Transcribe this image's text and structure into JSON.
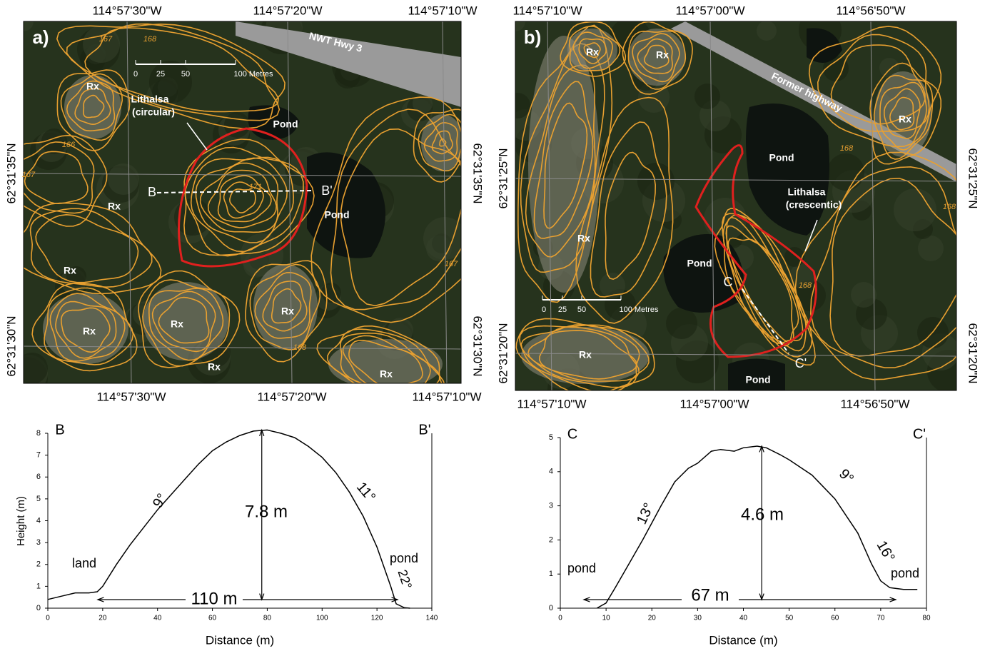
{
  "panel_a": {
    "label": "a)",
    "lon_top": [
      "114°57'30\"W",
      "114°57'20\"W",
      "114°57'10\"W"
    ],
    "lon_bottom": [
      "114°57'30\"W",
      "114°57'20\"W",
      "114°57'10\"W"
    ],
    "lat_left": [
      "62°31'35\"N",
      "62°31'30\"N"
    ],
    "lat_right": [
      "62°31'35\"N",
      "62°31'30\"N"
    ],
    "road": "NWT Hwy 3",
    "scale": [
      "0",
      "25",
      "50",
      "100 Metres"
    ],
    "feature": [
      "Lithalsa",
      "(circular)"
    ],
    "ponds": [
      "Pond",
      "Pond"
    ],
    "rock": [
      "Rx",
      "Rx",
      "Rx",
      "Rx",
      "Rx",
      "Rx",
      "Rx",
      "Rx"
    ],
    "sections": [
      "B",
      "B'"
    ],
    "contours": [
      "167",
      "168",
      "166",
      "167",
      "171",
      "168",
      "167"
    ]
  },
  "panel_b": {
    "label": "b)",
    "lon_top": [
      "114°57'10\"W",
      "114°57'00\"W",
      "114°56'50\"W"
    ],
    "lon_bottom": [
      "114°57'10\"W",
      "114°57'00\"W",
      "114°56'50\"W"
    ],
    "lat_left": [
      "62°31'25\"N",
      "62°31'20\"N"
    ],
    "lat_right": [
      "62°31'25\"N",
      "62°31'20\"N"
    ],
    "road": "Former highway",
    "scale": [
      "0",
      "25",
      "50",
      "100 Metres"
    ],
    "feature": [
      "Lithalsa",
      "(crescentic)"
    ],
    "ponds": [
      "Pond",
      "Pond",
      "Pond"
    ],
    "rock": [
      "Rx",
      "Rx",
      "Rx",
      "Rx",
      "Rx"
    ],
    "sections": [
      "C",
      "C'"
    ],
    "contours": [
      "168",
      "168",
      "168"
    ]
  },
  "chart_data": [
    {
      "type": "line",
      "corner_labels": [
        "B",
        "B'"
      ],
      "x_label": "Distance (m)",
      "y_label": "Height (m)",
      "color": "#000000",
      "x": [
        0,
        5,
        10,
        15,
        18,
        20,
        25,
        30,
        35,
        40,
        45,
        50,
        55,
        60,
        65,
        70,
        75,
        80,
        85,
        90,
        95,
        100,
        105,
        110,
        115,
        120,
        125,
        127,
        130,
        132
      ],
      "values": [
        0.4,
        0.55,
        0.7,
        0.7,
        0.75,
        1.0,
        2.0,
        2.9,
        3.7,
        4.5,
        5.2,
        5.9,
        6.6,
        7.2,
        7.6,
        7.9,
        8.1,
        8.15,
        8.0,
        7.8,
        7.4,
        6.9,
        6.2,
        5.3,
        4.2,
        2.8,
        1.0,
        0.2,
        0.02,
        0.0
      ],
      "xlim": [
        0,
        140
      ],
      "ylim": [
        0,
        8
      ],
      "xticks": [
        0,
        20,
        40,
        60,
        80,
        100,
        120,
        140
      ],
      "yticks": [
        0,
        1,
        2,
        3,
        4,
        5,
        6,
        7,
        8
      ],
      "annotations": [
        "land",
        "9°",
        "7.8 m",
        "11°",
        "pond",
        "22°",
        "110 m"
      ]
    },
    {
      "type": "line",
      "corner_labels": [
        "C",
        "C'"
      ],
      "x_label": "Distance (m)",
      "color": "#000000",
      "x": [
        8,
        10,
        12,
        15,
        18,
        20,
        22,
        25,
        28,
        30,
        33,
        35,
        38,
        40,
        43,
        45,
        48,
        50,
        55,
        60,
        65,
        68,
        70,
        72,
        75,
        78
      ],
      "values": [
        0.0,
        0.15,
        0.6,
        1.3,
        2.0,
        2.5,
        3.0,
        3.7,
        4.1,
        4.25,
        4.6,
        4.65,
        4.6,
        4.7,
        4.75,
        4.7,
        4.5,
        4.35,
        3.9,
        3.2,
        2.2,
        1.3,
        0.8,
        0.6,
        0.55,
        0.55
      ],
      "xlim": [
        0,
        80
      ],
      "ylim": [
        0,
        5
      ],
      "xticks": [
        0,
        10,
        20,
        30,
        40,
        50,
        60,
        70,
        80
      ],
      "yticks": [
        0,
        1,
        2,
        3,
        4,
        5
      ],
      "annotations": [
        "pond",
        "13°",
        "4.6 m",
        "9°",
        "16°",
        "pond",
        "67 m"
      ]
    }
  ]
}
